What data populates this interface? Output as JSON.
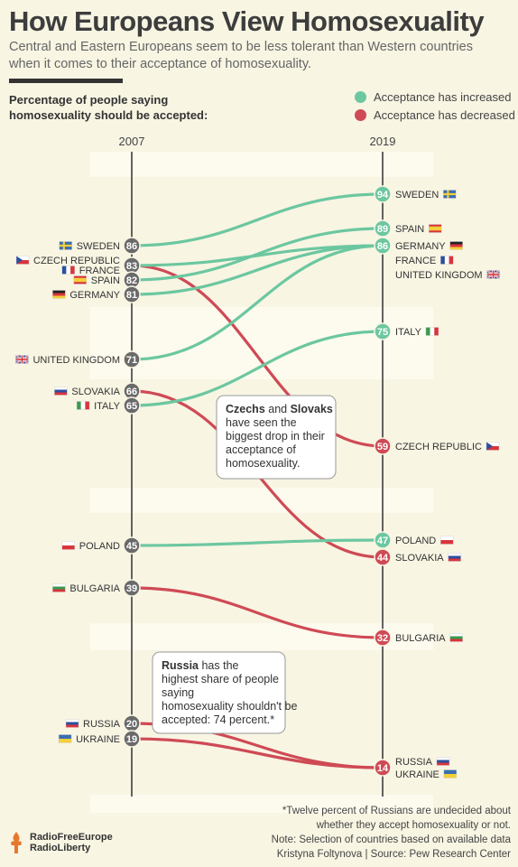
{
  "title": "How Europeans View Homosexuality",
  "subtitle": "Central and Eastern Europeans seem to be less tolerant than Western countries when it comes to their acceptance of homosexuality.",
  "question": "Percentage of people saying homosexuality should be accepted:",
  "legend": {
    "increased": "Acceptance has increased",
    "decreased": "Acceptance has decreased"
  },
  "colors": {
    "increased": "#6cc7a0",
    "decreased": "#cf4a55",
    "node": "#6a6a6a",
    "axis": "#3d3d3d"
  },
  "annotations": {
    "czechs": {
      "parts": [
        "Czechs",
        " and ",
        "Slovaks",
        " have seen the biggest drop in their acceptance of homosexuality."
      ]
    },
    "russia": {
      "parts": [
        "Russia",
        " has the highest share of people saying homosexuality shouldn't be accepted: 74 percent.*"
      ]
    }
  },
  "footer": {
    "line1": "*Twelve percent of Russians are undecided about",
    "line2": "whether they accept homosexuality or not.",
    "line3": "Note: Selection of countries based on available data",
    "line4": "Kristyna Foltynova | Source: Pew Research Center"
  },
  "brand": {
    "line1": "RadioFreeEurope",
    "line2": "RadioLiberty",
    "icon": "torch-icon"
  },
  "chart_data": {
    "type": "slope",
    "xlabel_left": "2007",
    "xlabel_right": "2019",
    "series": [
      {
        "name": "SWEDEN",
        "v2007": 86,
        "v2019": 94,
        "trend": "increased"
      },
      {
        "name": "CZECH REPUBLIC",
        "v2007": 83,
        "v2019": 59,
        "trend": "decreased"
      },
      {
        "name": "FRANCE",
        "v2007": 83,
        "v2019": 86,
        "trend": "increased"
      },
      {
        "name": "SPAIN",
        "v2007": 82,
        "v2019": 89,
        "trend": "increased"
      },
      {
        "name": "GERMANY",
        "v2007": 81,
        "v2019": 86,
        "trend": "increased"
      },
      {
        "name": "UNITED KINGDOM",
        "v2007": 71,
        "v2019": 86,
        "trend": "increased"
      },
      {
        "name": "SLOVAKIA",
        "v2007": 66,
        "v2019": 44,
        "trend": "decreased"
      },
      {
        "name": "ITALY",
        "v2007": 65,
        "v2019": 75,
        "trend": "increased"
      },
      {
        "name": "POLAND",
        "v2007": 45,
        "v2019": 47,
        "trend": "increased"
      },
      {
        "name": "BULGARIA",
        "v2007": 39,
        "v2019": 32,
        "trend": "decreased"
      },
      {
        "name": "RUSSIA",
        "v2007": 20,
        "v2019": 14,
        "trend": "decreased"
      },
      {
        "name": "UKRAINE",
        "v2007": 19,
        "v2019": 14,
        "trend": "decreased"
      }
    ],
    "left_labels": [
      {
        "names": [
          "SWEDEN"
        ],
        "value": 86
      },
      {
        "names": [
          "CZECH REPUBLIC",
          "FRANCE"
        ],
        "value": 83
      },
      {
        "names": [
          "SPAIN"
        ],
        "value": 82
      },
      {
        "names": [
          "GERMANY"
        ],
        "value": 81
      },
      {
        "names": [
          "UNITED KINGDOM"
        ],
        "value": 71
      },
      {
        "names": [
          "SLOVAKIA"
        ],
        "value": 66
      },
      {
        "names": [
          "ITALY"
        ],
        "value": 65
      },
      {
        "names": [
          "POLAND"
        ],
        "value": 45
      },
      {
        "names": [
          "BULGARIA"
        ],
        "value": 39
      },
      {
        "names": [
          "RUSSIA"
        ],
        "value": 20
      },
      {
        "names": [
          "UKRAINE"
        ],
        "value": 19
      }
    ],
    "right_labels": [
      {
        "names": [
          "SWEDEN"
        ],
        "value": 94
      },
      {
        "names": [
          "SPAIN"
        ],
        "value": 89
      },
      {
        "names": [
          "GERMANY",
          "FRANCE",
          "UNITED KINGDOM"
        ],
        "value": 86
      },
      {
        "names": [
          "ITALY"
        ],
        "value": 75
      },
      {
        "names": [
          "CZECH REPUBLIC"
        ],
        "value": 59
      },
      {
        "names": [
          "POLAND"
        ],
        "value": 47
      },
      {
        "names": [
          "SLOVAKIA"
        ],
        "value": 44
      },
      {
        "names": [
          "BULGARIA"
        ],
        "value": 32
      },
      {
        "names": [
          "RUSSIA",
          "UKRAINE"
        ],
        "value": 14
      }
    ]
  }
}
